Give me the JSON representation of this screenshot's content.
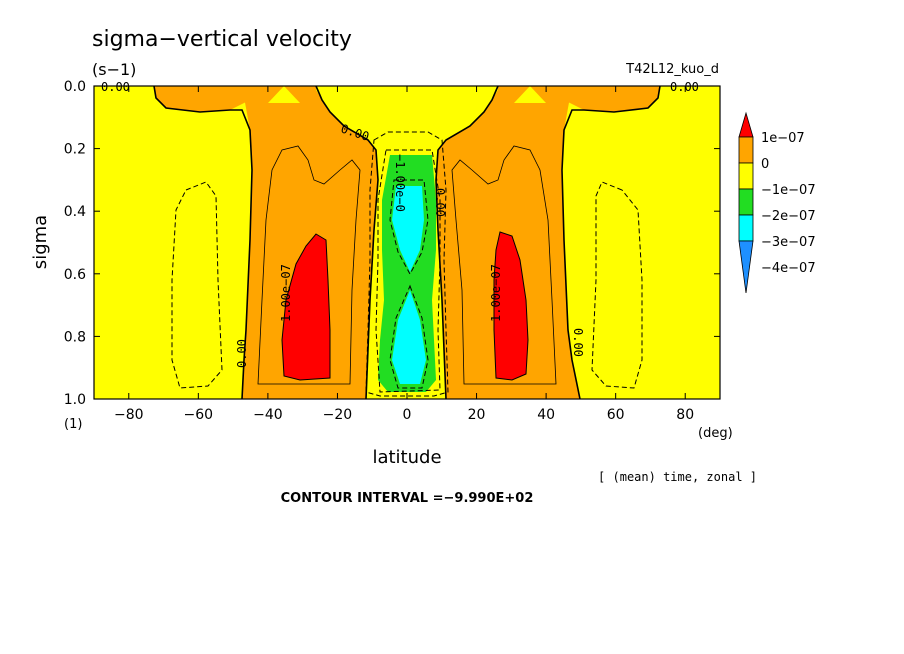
{
  "chart_data": {
    "type": "heatmap",
    "title": "sigma−vertical velocity",
    "units": "(s−1)",
    "run_label": "T42L12_kuo_d",
    "xlabel": "latitude",
    "x_unit": "(deg)",
    "ylabel": "sigma",
    "y_unit": "(1)",
    "xlim": [
      -90,
      90
    ],
    "ylim": [
      0.0,
      1.0
    ],
    "y_inverted": true,
    "x_ticks": [
      "−80",
      "−60",
      "−40",
      "−20",
      "0",
      "20",
      "40",
      "60",
      "80"
    ],
    "y_ticks": [
      "0.0",
      "0.2",
      "0.4",
      "0.6",
      "0.8",
      "1.0"
    ],
    "averaging_note": "[ (mean) time, zonal ]",
    "contour_interval_text": "CONTOUR INTERVAL =−9.990E+02",
    "contour_labels": [
      "0.00",
      "0.00",
      "0.00",
      "0.00",
      "0.00",
      "0.00",
      "1.00e−07",
      "1.00e−07",
      "−1.00e−0"
    ],
    "legend": {
      "labels": [
        "1e−07",
        "0",
        "−1e−07",
        "−2e−07",
        "−3e−07",
        "−4e−07"
      ],
      "colors": [
        "#ff0000",
        "#ffa500",
        "#ffff00",
        "#22dd22",
        "#00ffff",
        "#1e90ff"
      ]
    },
    "regions": {
      "background_value": "−1e−07 to 0",
      "left_updraft_lat": [
        -48,
        -8
      ],
      "right_updraft_lat": [
        12,
        48
      ],
      "left_max_lat": [
        -37,
        -23
      ],
      "right_max_lat": [
        27,
        38
      ],
      "equatorial_downdraft_lat": [
        -8,
        10
      ],
      "sigma_of_updraft_max": [
        0.47,
        0.94
      ]
    }
  }
}
